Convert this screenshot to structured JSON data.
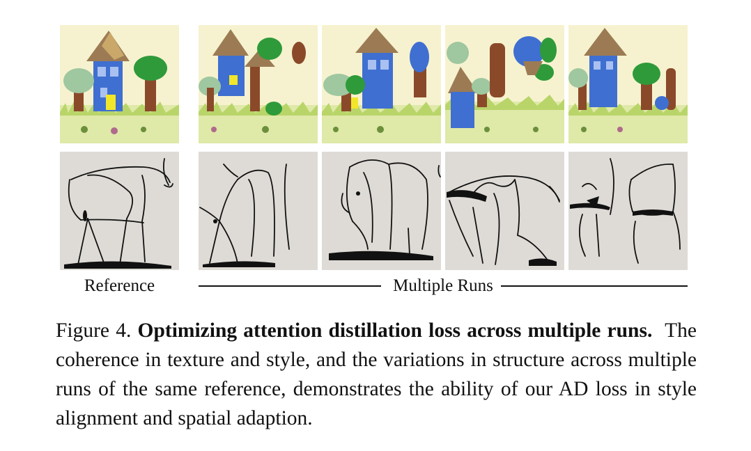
{
  "figure": {
    "reference_label": "Reference",
    "runs_label": "Multiple Runs",
    "caption": {
      "prefix": "Figure 4.",
      "title": "Optimizing attention distillation loss across multiple runs.",
      "body": "The coherence in texture and style, and the variations in structure across multiple runs of the same reference, demonstrates the ability of our AD loss in style alignment and spatial adaption."
    },
    "rows": [
      {
        "subject": "child-drawing-house-trees",
        "tiles": [
          "reference",
          "run-1",
          "run-2",
          "run-3",
          "run-4"
        ]
      },
      {
        "subject": "line-drawing-bull",
        "tiles": [
          "reference",
          "run-1",
          "run-2",
          "run-3",
          "run-4"
        ]
      }
    ],
    "colors": {
      "paper_yellow": "#f6f2cf",
      "grass": "#b9d56a",
      "roof": "#9c7b54",
      "house_blue": "#3f6fd0",
      "tree_green": "#2f9a3a",
      "trunk": "#8a4a2a",
      "sketch_bg": "#dedbd6",
      "ink": "#111111"
    }
  }
}
